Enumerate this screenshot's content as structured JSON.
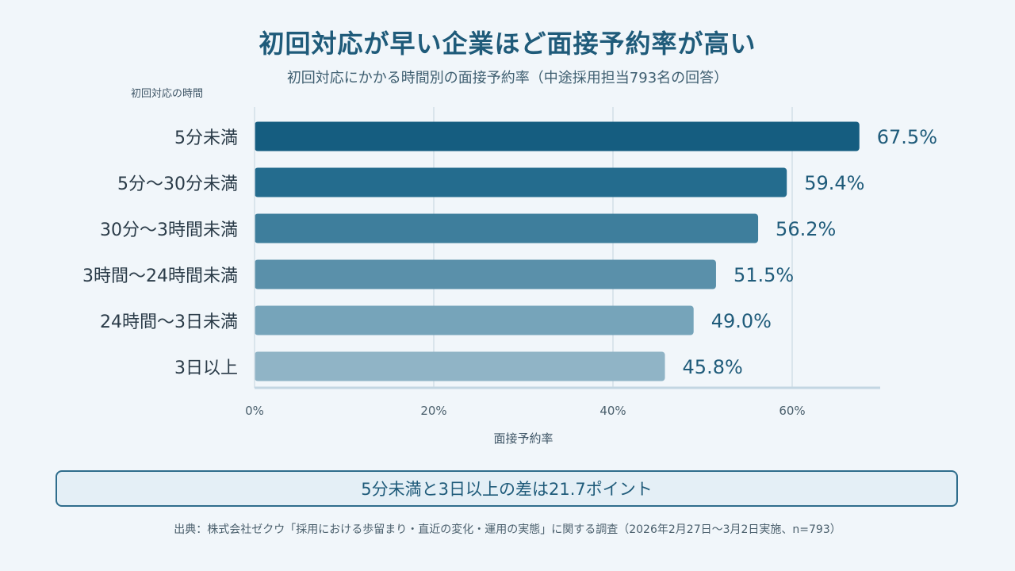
{
  "title": "初回対応が早い企業ほど面接予約率が高い",
  "subtitle": "初回対応にかかる時間別の面接予約率（中途採用担当793名の回答）",
  "note": "5分未満と3日以上の差は21.7ポイント",
  "source": "出典：株式会社ゼクウ「採用における歩留まり・直近の変化・運用の実態」に関する調査（2026年2月27日〜3月2日実施、n=793）",
  "chart_data": {
    "type": "bar",
    "orientation": "horizontal",
    "title": "初回対応が早い企業ほど面接予約率が高い",
    "subtitle": "初回対応にかかる時間別の面接予約率（中途採用担当793名の回答）",
    "ylabel": "初回対応の時間",
    "xlabel": "面接予約率",
    "categories": [
      "5分未満",
      "5分〜30分未満",
      "30分〜3時間未満",
      "3時間〜24時間未満",
      "24時間〜3日未満",
      "3日以上"
    ],
    "values": [
      67.5,
      59.4,
      56.2,
      51.5,
      49.0,
      45.8
    ],
    "value_labels": [
      "67.5%",
      "59.4%",
      "56.2%",
      "51.5%",
      "49.0%",
      "45.8%"
    ],
    "xlim": [
      0,
      70
    ],
    "xticks": [
      0,
      20,
      40,
      60
    ],
    "xtick_labels": [
      "0%",
      "20%",
      "40%",
      "60%"
    ],
    "grid": true,
    "colors": [
      "#155d80",
      "#246c8e",
      "#3e7e9c",
      "#5a90aa",
      "#76a4ba",
      "#90b4c6"
    ],
    "value_label_color": "#1f5b7a",
    "category_label_color": "#2a3b48"
  }
}
